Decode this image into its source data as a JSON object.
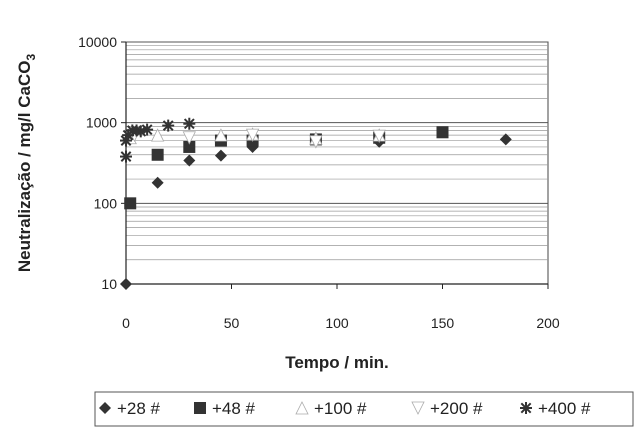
{
  "chart_data": {
    "type": "scatter",
    "xlabel": "Tempo / min.",
    "ylabel": "Neutralização / mg/l CaCO",
    "ylabel_subscript": "3",
    "xlim": [
      0,
      200
    ],
    "ylim": [
      10,
      10000
    ],
    "yscale": "log",
    "x_ticks": [
      0,
      50,
      100,
      150,
      200
    ],
    "y_ticks": [
      10,
      100,
      1000,
      10000
    ],
    "x_tick_labels": [
      "0",
      "50",
      "100",
      "150",
      "200"
    ],
    "y_tick_labels": [
      "10",
      "100",
      "1000",
      "10000"
    ],
    "grid": "horizontal",
    "legend_position": "bottom",
    "series": [
      {
        "name": "+28 #",
        "marker": "diamond",
        "color": "#333333",
        "points": [
          [
            0,
            10
          ],
          [
            15,
            180
          ],
          [
            30,
            340
          ],
          [
            45,
            390
          ],
          [
            60,
            500
          ],
          [
            120,
            580
          ],
          [
            180,
            620
          ]
        ]
      },
      {
        "name": "+48 #",
        "marker": "square",
        "color": "#333333",
        "points": [
          [
            2,
            100
          ],
          [
            15,
            400
          ],
          [
            30,
            500
          ],
          [
            45,
            600
          ],
          [
            60,
            600
          ],
          [
            90,
            620
          ],
          [
            120,
            650
          ],
          [
            150,
            760
          ]
        ]
      },
      {
        "name": "+100 #",
        "marker": "triangle",
        "color": "#ffffff",
        "points": [
          [
            2,
            650
          ],
          [
            15,
            700
          ],
          [
            45,
            700
          ],
          [
            60,
            720
          ],
          [
            90,
            640
          ],
          [
            120,
            700
          ]
        ]
      },
      {
        "name": "+200 #",
        "marker": "triangle-down",
        "color": "#ffffff",
        "points": [
          [
            4,
            700
          ],
          [
            30,
            650
          ],
          [
            60,
            700
          ],
          [
            90,
            580
          ],
          [
            120,
            680
          ]
        ]
      },
      {
        "name": "+400 #",
        "marker": "asterisk",
        "color": "#333333",
        "points": [
          [
            0,
            380
          ],
          [
            0,
            600
          ],
          [
            1,
            700
          ],
          [
            3,
            800
          ],
          [
            5,
            800
          ],
          [
            7,
            780
          ],
          [
            10,
            820
          ],
          [
            20,
            920
          ],
          [
            30,
            970
          ]
        ]
      }
    ]
  }
}
